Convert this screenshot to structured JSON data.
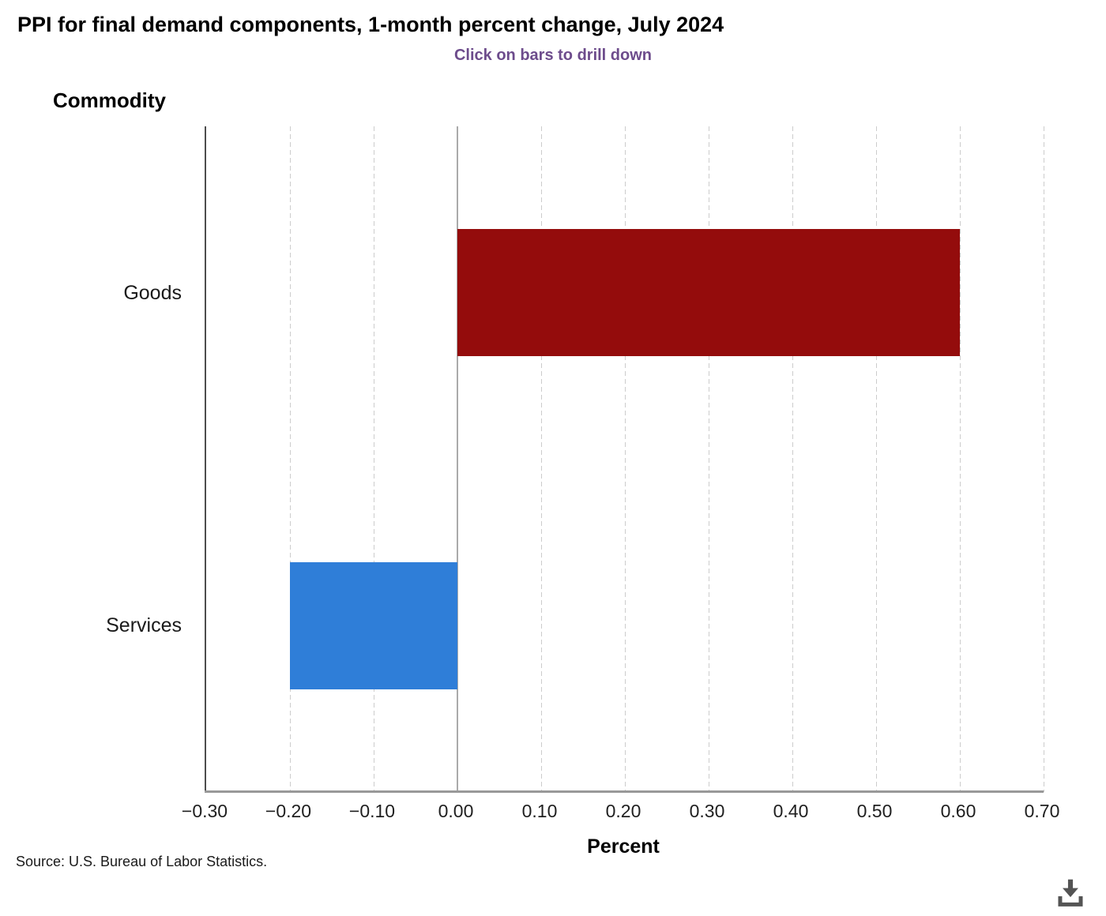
{
  "header": {
    "title": "PPI for final demand components, 1-month percent change, July 2024",
    "subtitle": "Click on bars to drill down"
  },
  "axes": {
    "y_title": "Commodity",
    "x_title": "Percent"
  },
  "footer": {
    "source": "Source: U.S. Bureau of Labor Statistics."
  },
  "colors": {
    "subtitle_text": "#6d4c8c",
    "goods_bar": "#940c0c",
    "services_bar": "#2f7ed8",
    "axis_line": "#4d4d4d",
    "baseline": "#999999",
    "gridline": "#cccccc",
    "zero_line": "#aaaaaa",
    "download_icon": "#545454"
  },
  "icons": {
    "download": "download-icon"
  },
  "chart_data": {
    "type": "bar",
    "orientation": "horizontal",
    "title": "PPI for final demand components, 1-month percent change, July 2024",
    "subtitle": "Click on bars to drill down",
    "categories": [
      "Goods",
      "Services"
    ],
    "series": [
      {
        "name": "1-month percent change",
        "values": [
          0.6,
          -0.2
        ],
        "colors": [
          "#940c0c",
          "#2f7ed8"
        ]
      }
    ],
    "xlabel": "Percent",
    "ylabel": "Commodity",
    "xlim": [
      -0.3,
      0.7
    ],
    "xticks": [
      -0.3,
      -0.2,
      -0.1,
      0.0,
      0.1,
      0.2,
      0.3,
      0.4,
      0.5,
      0.6,
      0.7
    ],
    "xtick_labels": [
      "−0.30",
      "−0.20",
      "−0.10",
      "0.00",
      "0.10",
      "0.20",
      "0.30",
      "0.40",
      "0.50",
      "0.60",
      "0.70"
    ],
    "grid": "vertical-dashed",
    "zero_line": true,
    "legend": "none",
    "bar_thickness_px": 161,
    "drilldown": true
  }
}
